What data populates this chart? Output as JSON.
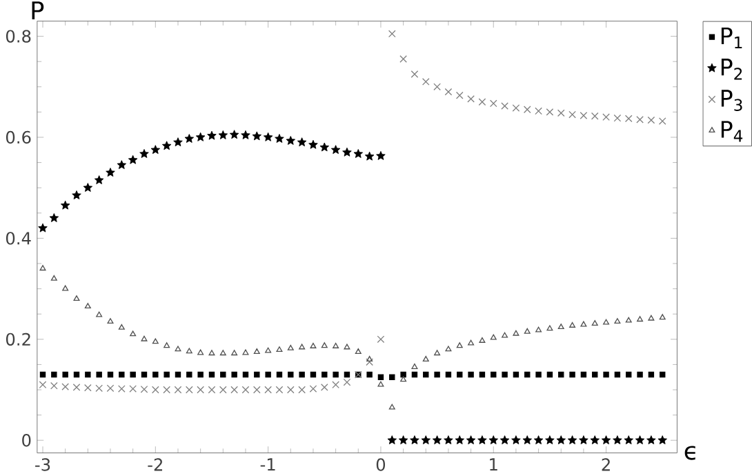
{
  "chart_data": {
    "type": "scatter",
    "xlabel": "ϵ",
    "ylabel": "P",
    "x": [
      -3,
      -2.9,
      -2.8,
      -2.7,
      -2.6,
      -2.5,
      -2.4,
      -2.3,
      -2.2,
      -2.1,
      -2,
      -1.9,
      -1.8,
      -1.7,
      -1.6,
      -1.5,
      -1.4,
      -1.3,
      -1.2,
      -1.1,
      -1,
      -0.9,
      -0.8,
      -0.7,
      -0.6,
      -0.5,
      -0.4,
      -0.3,
      -0.2,
      -0.1,
      0,
      0.1,
      0.2,
      0.3,
      0.4,
      0.5,
      0.6,
      0.7,
      0.8,
      0.9,
      1,
      1.1,
      1.2,
      1.3,
      1.4,
      1.5,
      1.6,
      1.7,
      1.8,
      1.9,
      2,
      2.1,
      2.2,
      2.3,
      2.4,
      2.5
    ],
    "series": [
      {
        "name": "P$_{1}$",
        "color": "#000000",
        "marker": "square",
        "values": [
          0.13,
          0.13,
          0.13,
          0.13,
          0.13,
          0.13,
          0.13,
          0.13,
          0.13,
          0.13,
          0.13,
          0.13,
          0.13,
          0.13,
          0.13,
          0.13,
          0.13,
          0.13,
          0.13,
          0.13,
          0.13,
          0.13,
          0.13,
          0.13,
          0.13,
          0.13,
          0.13,
          0.13,
          0.13,
          0.13,
          0.125,
          0.125,
          0.13,
          0.13,
          0.13,
          0.13,
          0.13,
          0.13,
          0.13,
          0.13,
          0.13,
          0.13,
          0.13,
          0.13,
          0.13,
          0.13,
          0.13,
          0.13,
          0.13,
          0.13,
          0.13,
          0.13,
          0.13,
          0.13,
          0.13,
          0.13
        ]
      },
      {
        "name": "P$_{2}$",
        "color": "#000000",
        "marker": "star",
        "values": [
          0.42,
          0.44,
          0.465,
          0.485,
          0.5,
          0.515,
          0.53,
          0.545,
          0.555,
          0.567,
          0.575,
          0.583,
          0.59,
          0.597,
          0.6,
          0.603,
          0.604,
          0.605,
          0.604,
          0.602,
          0.6,
          0.597,
          0.593,
          0.59,
          0.585,
          0.58,
          0.575,
          0.57,
          0.567,
          0.562,
          0.563,
          0,
          0,
          0,
          0,
          0,
          0,
          0,
          0,
          0,
          0,
          0,
          0,
          0,
          0,
          0,
          0,
          0,
          0,
          0,
          0,
          0,
          0,
          0,
          0,
          0
        ]
      },
      {
        "name": "P$_{3}$",
        "color": "#808080",
        "marker": "cross",
        "values": [
          0.11,
          0.108,
          0.106,
          0.105,
          0.104,
          0.103,
          0.103,
          0.102,
          0.102,
          0.101,
          0.1,
          0.1,
          0.1,
          0.1,
          0.1,
          0.1,
          0.1,
          0.1,
          0.1,
          0.1,
          0.1,
          0.1,
          0.1,
          0.1,
          0.102,
          0.105,
          0.11,
          0.115,
          0.13,
          0.155,
          0.2,
          0.805,
          0.755,
          0.725,
          0.71,
          0.7,
          0.69,
          0.683,
          0.676,
          0.67,
          0.667,
          0.662,
          0.658,
          0.655,
          0.652,
          0.65,
          0.648,
          0.645,
          0.643,
          0.642,
          0.64,
          0.638,
          0.637,
          0.635,
          0.634,
          0.632
        ]
      },
      {
        "name": "P$_{4}$",
        "color": "#505050",
        "marker": "triangle",
        "values": [
          0.34,
          0.32,
          0.3,
          0.28,
          0.265,
          0.248,
          0.235,
          0.223,
          0.21,
          0.2,
          0.195,
          0.187,
          0.18,
          0.176,
          0.173,
          0.172,
          0.172,
          0.172,
          0.173,
          0.175,
          0.177,
          0.179,
          0.182,
          0.184,
          0.186,
          0.187,
          0.186,
          0.184,
          0.175,
          0.16,
          0.11,
          0.065,
          0.12,
          0.145,
          0.16,
          0.172,
          0.18,
          0.187,
          0.192,
          0.197,
          0.203,
          0.207,
          0.211,
          0.215,
          0.218,
          0.221,
          0.224,
          0.227,
          0.229,
          0.231,
          0.233,
          0.235,
          0.237,
          0.239,
          0.241,
          0.243
        ]
      }
    ],
    "xlim": [
      -3.05,
      2.63
    ],
    "ylim": [
      -0.025,
      0.83
    ],
    "xticks": [
      -3,
      -2,
      -1,
      0,
      1,
      2
    ],
    "yticks": [
      0,
      0.2,
      0.4,
      0.6,
      0.8
    ],
    "legend": "right",
    "grid": false
  }
}
